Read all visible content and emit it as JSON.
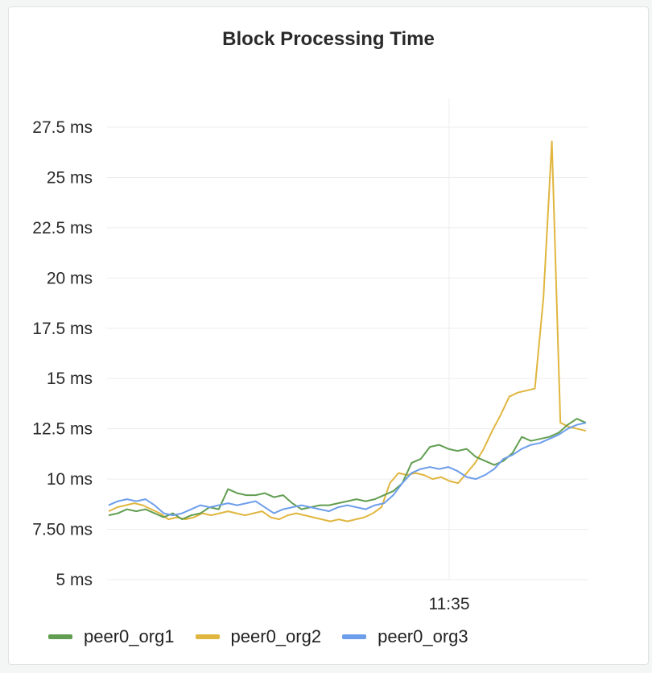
{
  "chart_data": {
    "type": "line",
    "title": "Block Processing Time",
    "xlabel": "",
    "ylabel": "",
    "y_ticks": [
      "5 ms",
      "7.50 ms",
      "10 ms",
      "12.5 ms",
      "15 ms",
      "17.5 ms",
      "20 ms",
      "22.5 ms",
      "25 ms",
      "27.5 ms"
    ],
    "y_tick_values": [
      5,
      7.5,
      10,
      12.5,
      15,
      17.5,
      20,
      22.5,
      25,
      27.5
    ],
    "x_ticks": [
      "11:35"
    ],
    "ylim": [
      4.5,
      27.5
    ],
    "grid": true,
    "legend_position": "bottom-left",
    "series": [
      {
        "name": "peer0_org1",
        "color": "#629e51",
        "values": [
          8.2,
          8.3,
          8.5,
          8.4,
          8.5,
          8.3,
          8.1,
          8.3,
          8.0,
          8.2,
          8.3,
          8.6,
          8.5,
          9.5,
          9.3,
          9.2,
          9.2,
          9.3,
          9.1,
          9.2,
          8.8,
          8.5,
          8.6,
          8.7,
          8.7,
          8.8,
          8.9,
          9.0,
          8.9,
          9.0,
          9.2,
          9.4,
          9.8,
          10.8,
          11.0,
          11.6,
          11.7,
          11.5,
          11.4,
          11.5,
          11.1,
          10.9,
          10.7,
          10.9,
          11.3,
          12.1,
          11.9,
          12.0,
          12.1,
          12.3,
          12.7,
          13.0,
          12.8
        ]
      },
      {
        "name": "peer0_org2",
        "color": "#e0b63f",
        "values": [
          8.4,
          8.6,
          8.7,
          8.8,
          8.7,
          8.5,
          8.3,
          8.0,
          8.1,
          8.0,
          8.1,
          8.3,
          8.2,
          8.3,
          8.4,
          8.3,
          8.2,
          8.3,
          8.4,
          8.1,
          8.0,
          8.2,
          8.3,
          8.2,
          8.1,
          8.0,
          7.9,
          8.0,
          7.9,
          8.0,
          8.1,
          8.3,
          8.6,
          9.8,
          10.3,
          10.2,
          10.3,
          10.2,
          10.0,
          10.1,
          9.9,
          9.8,
          10.3,
          10.8,
          11.5,
          12.4,
          13.2,
          14.1,
          14.3,
          14.4,
          14.5,
          19.0,
          26.8,
          12.8,
          12.6,
          12.5,
          12.4
        ]
      },
      {
        "name": "peer0_org3",
        "color": "#6d9eeb",
        "values": [
          8.7,
          8.9,
          9.0,
          8.9,
          9.0,
          8.7,
          8.3,
          8.2,
          8.3,
          8.5,
          8.7,
          8.6,
          8.7,
          8.8,
          8.7,
          8.8,
          8.9,
          8.6,
          8.3,
          8.5,
          8.6,
          8.7,
          8.6,
          8.5,
          8.4,
          8.6,
          8.7,
          8.6,
          8.5,
          8.7,
          8.8,
          9.2,
          9.8,
          10.3,
          10.5,
          10.6,
          10.5,
          10.6,
          10.4,
          10.1,
          10.0,
          10.2,
          10.5,
          11.0,
          11.2,
          11.5,
          11.7,
          11.8,
          12.0,
          12.2,
          12.5,
          12.7,
          12.8
        ]
      }
    ]
  }
}
